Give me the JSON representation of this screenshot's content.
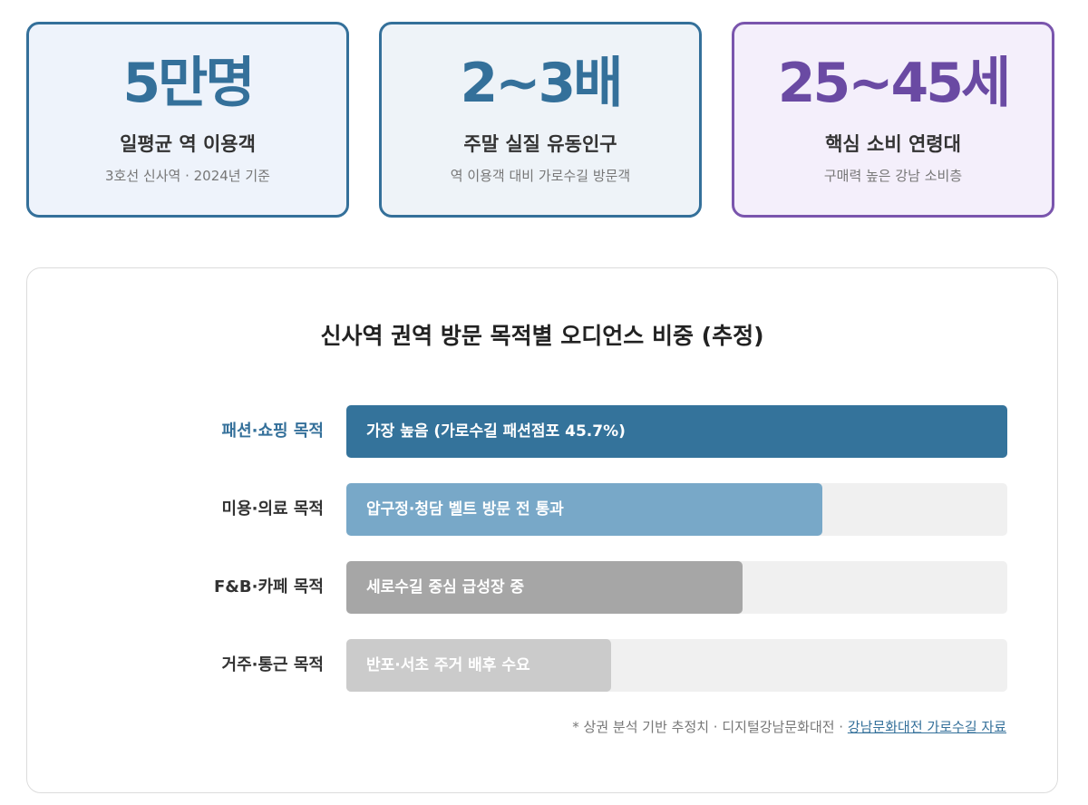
{
  "stats": [
    {
      "value": "5만명",
      "label": "일평균 역 이용객",
      "sub": "3호선 신사역 · 2024년 기준"
    },
    {
      "value": "2~3배",
      "label": "주말 실질 유동인구",
      "sub": "역 이용객 대비 가로수길 방문객"
    },
    {
      "value": "25~45세",
      "label": "핵심 소비 연령대",
      "sub": "구매력 높은 강남 소비층"
    }
  ],
  "colors": {
    "accent": "#34709a",
    "purple": "#6a4aa3"
  },
  "chart_data": {
    "type": "bar",
    "orientation": "horizontal",
    "title": "신사역 권역 방문 목적별 오디언스 비중 (추정)",
    "categories": [
      "패션·쇼핑 목적",
      "미용·의료 목적",
      "F&B·카페 목적",
      "거주·통근 목적"
    ],
    "values": [
      100,
      72,
      60,
      40
    ],
    "value_unit": "percent of the longest bar (no numeric axis shown)",
    "bar_labels": [
      "가장 높음 (가로수길 패션점포 45.7%)",
      "압구정·청담 벨트 방문 전 통과",
      "세로수길 중심 급성장 중",
      "반포·서초 주거 배후 수요"
    ],
    "colors": [
      "#34739b",
      "#78a8c8",
      "#a6a6a6",
      "#cbcbcb"
    ],
    "label_colors": [
      "#34709a",
      "#333333",
      "#333333",
      "#333333"
    ],
    "grid": false,
    "legend": "none"
  },
  "footnote": {
    "prefix": "* 상권 분석 기반 추정치 · 디지털강남문화대전 · ",
    "link": "강남문화대전 가로수길 자료"
  }
}
